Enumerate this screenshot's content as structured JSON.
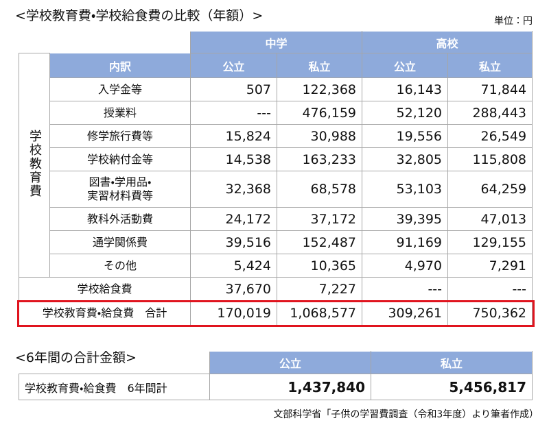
{
  "title": "<学校教育費・学校給食費の比較（年額）>",
  "unit": "単位：円",
  "table": {
    "group_headers": [
      "中学",
      "高校"
    ],
    "column_headers": [
      "内訳",
      "公立",
      "私立",
      "公立",
      "私立"
    ],
    "group_label": "学校教育費",
    "rows": [
      {
        "label": "入学金等",
        "cells": [
          "507",
          "122,368",
          "16,143",
          "71,844"
        ]
      },
      {
        "label": "授業料",
        "cells": [
          "---",
          "476,159",
          "52,120",
          "288,443"
        ]
      },
      {
        "label": "修学旅行費等",
        "cells": [
          "15,824",
          "30,988",
          "19,556",
          "26,549"
        ]
      },
      {
        "label": "学校納付金等",
        "cells": [
          "14,538",
          "163,233",
          "32,805",
          "115,808"
        ]
      },
      {
        "label": "図書・学用品・\n実習材料費等",
        "cells": [
          "32,368",
          "68,578",
          "53,103",
          "64,259"
        ]
      },
      {
        "label": "教科外活動費",
        "cells": [
          "24,172",
          "37,172",
          "39,395",
          "47,013"
        ]
      },
      {
        "label": "通学関係費",
        "cells": [
          "39,516",
          "152,487",
          "91,169",
          "129,155"
        ]
      },
      {
        "label": "その他",
        "cells": [
          "5,424",
          "10,365",
          "4,970",
          "7,291"
        ]
      }
    ],
    "lunch_row": {
      "label": "学校給食費",
      "cells": [
        "37,670",
        "7,227",
        "---",
        "---"
      ]
    },
    "total_row": {
      "label": "学校教育費・給食費　合計",
      "cells": [
        "170,019",
        "1,068,577",
        "309,261",
        "750,362"
      ]
    }
  },
  "summary": {
    "title": "<6年間の合計金額>",
    "column_headers": [
      "公立",
      "私立"
    ],
    "row": {
      "label": "学校教育費・給食費　6年間計",
      "cells": [
        "1,437,840",
        "5,456,817"
      ]
    }
  },
  "source": "文部科学省「子供の学習費調査（令和3年度）より筆者作成）"
}
